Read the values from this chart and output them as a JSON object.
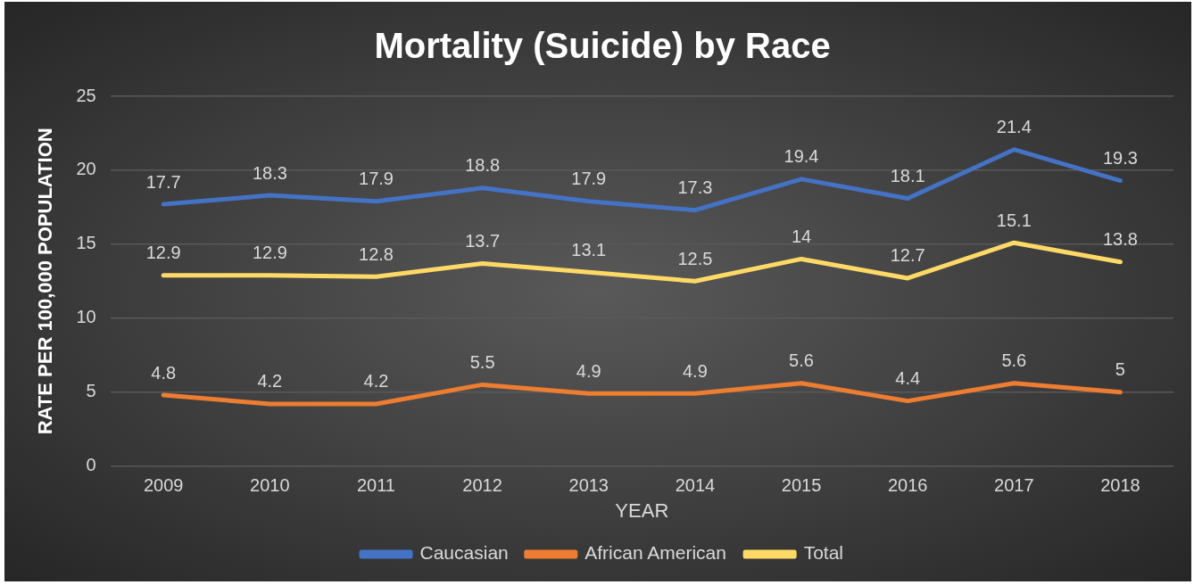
{
  "chart_data": {
    "type": "line",
    "title": "Mortality (Suicide) by Race",
    "xlabel": "YEAR",
    "ylabel": "RATE PER 100,000 POPULATION",
    "categories": [
      "2009",
      "2010",
      "2011",
      "2012",
      "2013",
      "2014",
      "2015",
      "2016",
      "2017",
      "2018"
    ],
    "series": [
      {
        "name": "Caucasian",
        "color": "#4472c4",
        "values": [
          17.7,
          18.3,
          17.9,
          18.8,
          17.9,
          17.3,
          19.4,
          18.1,
          21.4,
          19.3
        ]
      },
      {
        "name": "African American",
        "color": "#ed7d31",
        "values": [
          4.8,
          4.2,
          4.2,
          5.5,
          4.9,
          4.9,
          5.6,
          4.4,
          5.6,
          5
        ]
      },
      {
        "name": "Total",
        "color": "#ffd966",
        "values": [
          12.9,
          12.9,
          12.8,
          13.7,
          13.1,
          12.5,
          14,
          12.7,
          15.1,
          13.8
        ]
      }
    ],
    "ylim": [
      0,
      25
    ],
    "yticks": [
      0,
      5,
      10,
      15,
      20,
      25
    ],
    "grid": "y",
    "legend": "bottom",
    "data_labels": true,
    "marker": "none",
    "line_style": "solid"
  }
}
